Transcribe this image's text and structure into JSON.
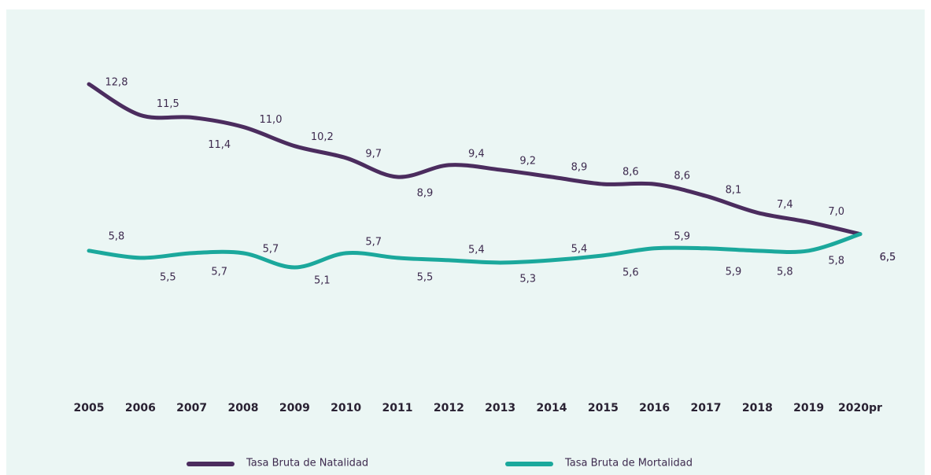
{
  "chart_data": {
    "type": "line",
    "categories": [
      "2005",
      "2006",
      "2007",
      "2008",
      "2009",
      "2010",
      "2011",
      "2012",
      "2013",
      "2014",
      "2015",
      "2016",
      "2017",
      "2018",
      "2019",
      "2020pr"
    ],
    "series": [
      {
        "name": "Tasa Bruta de Natalidad",
        "color": "#4b2c5e",
        "values": [
          12.8,
          11.5,
          11.4,
          11.0,
          10.2,
          9.7,
          8.9,
          9.4,
          9.2,
          8.9,
          8.6,
          8.6,
          8.1,
          7.4,
          7.0,
          6.5
        ],
        "value_labels": [
          "12,8",
          "11,5",
          "11,4",
          "11,0",
          "10,2",
          "9,7",
          "8,9",
          "9,4",
          "9,2",
          "8,9",
          "8,6",
          "8,6",
          "8,1",
          "7,4",
          "7,0",
          "6,5"
        ]
      },
      {
        "name": "Tasa Bruta de Mortalidad",
        "color": "#1ba89c",
        "values": [
          5.8,
          5.5,
          5.7,
          5.7,
          5.1,
          5.7,
          5.5,
          5.4,
          5.3,
          5.4,
          5.6,
          5.9,
          5.9,
          5.8,
          5.8,
          6.5
        ],
        "value_labels": [
          "5,8",
          "5,5",
          "5,7",
          "5,7",
          "5,1",
          "5,7",
          "5,5",
          "5,4",
          "5,3",
          "5,4",
          "5,6",
          "5,9",
          "5,9",
          "5,8",
          "5,8",
          "6,5"
        ]
      }
    ]
  }
}
